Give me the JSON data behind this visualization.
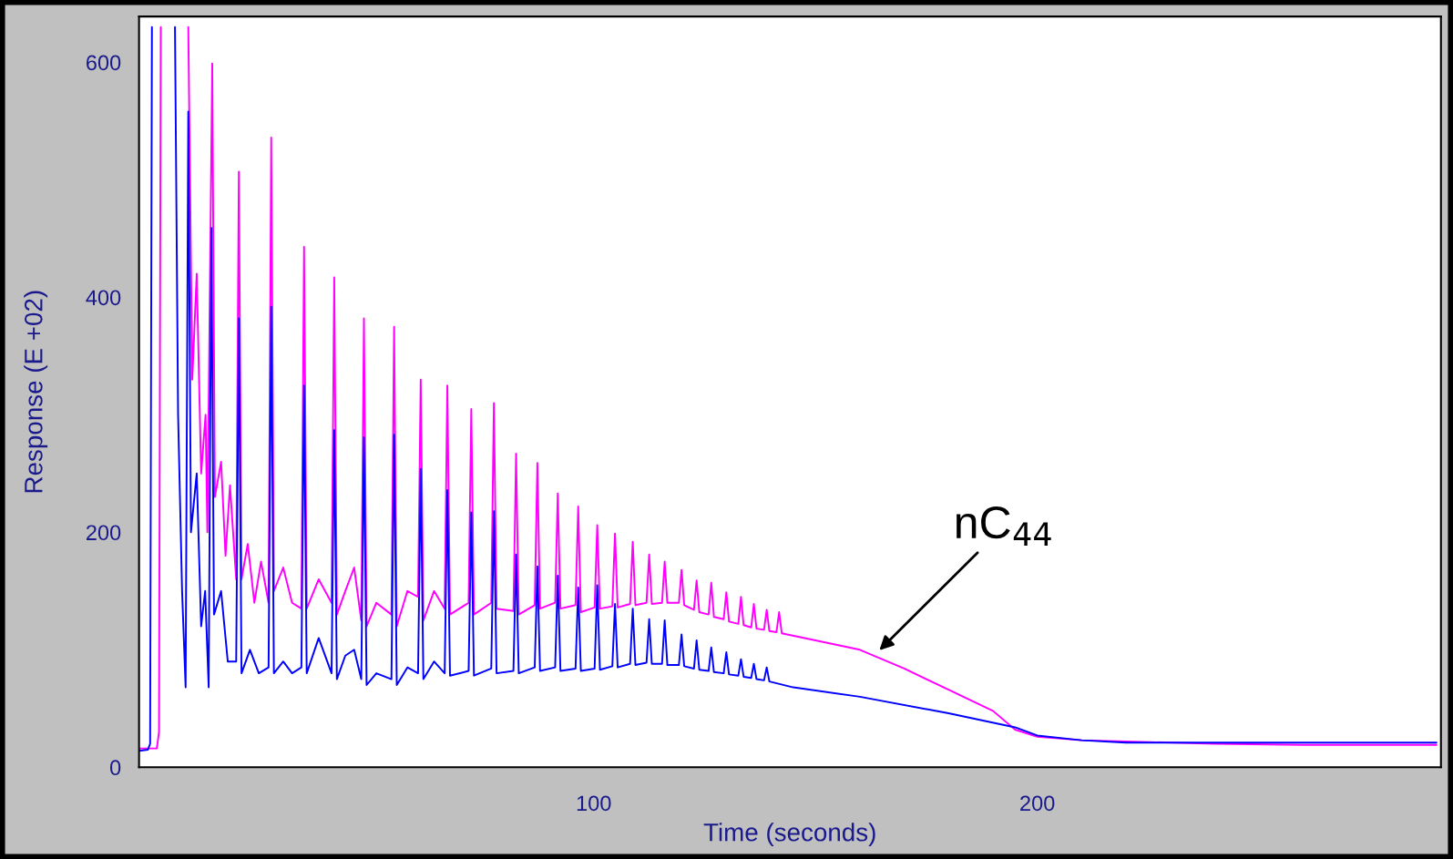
{
  "chart_data": {
    "type": "line",
    "xlabel": "Time (seconds)",
    "ylabel": "Response (E +02)",
    "xlim": [
      -2.5,
      291
    ],
    "ylim": [
      0,
      639
    ],
    "xticks": [
      100,
      200
    ],
    "yticks": [
      0,
      200,
      400,
      600
    ],
    "grid": false,
    "legend": false,
    "marker": "none",
    "line_style": "solid",
    "annotations": [
      {
        "text": "nC$_{44}$",
        "x": 164,
        "y": 98
      }
    ],
    "series": [
      {
        "color": "#ff00ff",
        "x": [
          -2.5,
          1.5,
          2,
          2.4,
          2.5,
          8.5,
          8.6,
          9.5,
          10.5,
          11.5,
          12.5,
          12.9,
          14,
          14.6,
          16,
          17,
          18,
          19.4,
          20,
          20.6,
          22,
          23.5,
          25,
          26.7,
          27.3,
          27.9,
          30,
          32,
          34.1,
          34.7,
          35.3,
          38,
          40.9,
          41.5,
          42.1,
          44,
          46,
          47.6,
          48.2,
          48.8,
          51,
          54.4,
          55,
          55.6,
          58,
          60.4,
          61,
          61.6,
          64,
          66.4,
          67,
          67.6,
          71.8,
          72.4,
          73,
          76.9,
          77.5,
          78.1,
          81.9,
          82.5,
          83.1,
          86.7,
          87.3,
          87.9,
          91.3,
          91.9,
          92.5,
          95.9,
          96.5,
          97.1,
          100.2,
          100.8,
          101.4,
          104.2,
          104.8,
          105.4,
          108.2,
          108.8,
          109.4,
          111.9,
          112.5,
          113.1,
          115.4,
          116,
          116.6,
          119.2,
          119.8,
          120.4,
          122.6,
          123.2,
          123.8,
          125.9,
          126.5,
          127.1,
          129.3,
          129.9,
          130.5,
          132.6,
          133.2,
          133.8,
          135.5,
          136.1,
          136.7,
          138.4,
          139,
          139.6,
          141.2,
          141.8,
          142.4,
          150,
          160,
          170,
          180,
          190,
          195,
          200,
          210,
          220,
          240,
          260,
          290
        ],
        "values": [
          16,
          16,
          30,
          630,
          null,
          null,
          630,
          330,
          420,
          250,
          300,
          200,
          599,
          230,
          260,
          180,
          240,
          160,
          507,
          160,
          190,
          140,
          175,
          140,
          536,
          150,
          170,
          140,
          135,
          443,
          135,
          160,
          140,
          417,
          130,
          150,
          170,
          125,
          382,
          120,
          140,
          130,
          375,
          120,
          150,
          145,
          330,
          125,
          150,
          135,
          325,
          130,
          140,
          305,
          130,
          140,
          310,
          135,
          133,
          267,
          130,
          138,
          259,
          135,
          140,
          233,
          135,
          138,
          222,
          132,
          136,
          206,
          135,
          137,
          199,
          136,
          139,
          192,
          138,
          140,
          181,
          139,
          140,
          175,
          140,
          140,
          168,
          138,
          134,
          159,
          132,
          130,
          157,
          128,
          126,
          149,
          124,
          122,
          145,
          121,
          119,
          139,
          118,
          117,
          134,
          116,
          115,
          132,
          114,
          108,
          100,
          84,
          66,
          48,
          32,
          26,
          23,
          22,
          20,
          19,
          19
        ]
      },
      {
        "color": "#0000ff",
        "x": [
          -2.5,
          -0.5,
          0,
          0.4,
          0.5,
          5.5,
          5.6,
          6.3,
          7.2,
          8,
          8.6,
          9.2,
          10.5,
          11.5,
          12.4,
          13.2,
          13.8,
          14.4,
          16,
          17.5,
          19.4,
          20,
          20.6,
          22.5,
          24.5,
          26.7,
          27.3,
          27.9,
          30,
          32,
          34.1,
          34.7,
          35.3,
          38,
          40.9,
          41.5,
          42.1,
          44,
          46,
          47.6,
          48.2,
          48.8,
          51,
          54.4,
          55,
          55.6,
          58,
          60.4,
          61,
          61.6,
          64,
          66.4,
          67,
          67.6,
          71.8,
          72.4,
          73,
          76.9,
          77.5,
          78.1,
          81.9,
          82.5,
          83.1,
          86.7,
          87.3,
          87.9,
          91.3,
          91.9,
          92.5,
          95.9,
          96.5,
          97.1,
          100.2,
          100.8,
          101.4,
          104.2,
          104.8,
          105.4,
          108.2,
          108.8,
          109.4,
          111.9,
          112.5,
          113.1,
          115.4,
          116,
          116.6,
          119.2,
          119.8,
          120.4,
          122.6,
          123.2,
          123.8,
          125.9,
          126.5,
          127.1,
          129.3,
          129.9,
          130.5,
          132.6,
          133.2,
          133.8,
          135.5,
          136.1,
          136.7,
          138.4,
          139,
          139.6,
          145,
          160,
          180,
          195,
          200,
          210,
          220,
          290
        ],
        "values": [
          14,
          15,
          20,
          630,
          null,
          null,
          630,
          300,
          150,
          68,
          558,
          200,
          250,
          120,
          150,
          68,
          459,
          130,
          150,
          90,
          90,
          382,
          80,
          100,
          80,
          85,
          392,
          80,
          90,
          80,
          85,
          325,
          80,
          110,
          80,
          287,
          75,
          95,
          100,
          75,
          281,
          70,
          80,
          75,
          283,
          70,
          85,
          80,
          254,
          75,
          90,
          80,
          236,
          78,
          82,
          217,
          78,
          84,
          218,
          80,
          82,
          181,
          80,
          85,
          171,
          82,
          85,
          163,
          82,
          84,
          153,
          82,
          84,
          155,
          83,
          86,
          139,
          85,
          88,
          135,
          87,
          89,
          126,
          88,
          88,
          125,
          87,
          87,
          113,
          86,
          84,
          108,
          83,
          82,
          102,
          81,
          80,
          98,
          79,
          78,
          92,
          77,
          76,
          88,
          75,
          74,
          85,
          73,
          68,
          60,
          46,
          34,
          27,
          23,
          21,
          21
        ]
      }
    ]
  }
}
